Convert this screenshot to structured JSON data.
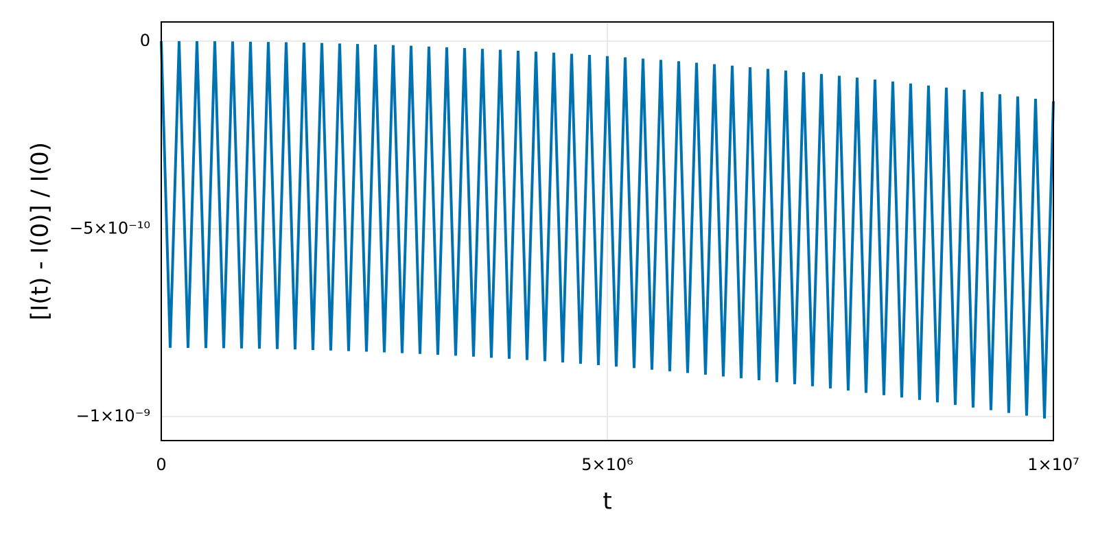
{
  "chart_data": {
    "type": "line",
    "xlabel": "t",
    "ylabel": "[I(t) - I(0)] / I(0)",
    "x": [
      0,
      100000,
      200000,
      300000,
      400000,
      500000,
      600000,
      700000,
      800000,
      900000,
      1000000,
      1100000,
      1200000,
      1300000,
      1400000,
      1500000,
      1600000,
      1700000,
      1800000,
      1900000,
      2000000,
      2100000,
      2200000,
      2300000,
      2400000,
      2500000,
      2600000,
      2700000,
      2800000,
      2900000,
      3000000,
      3100000,
      3200000,
      3300000,
      3400000,
      3500000,
      3600000,
      3700000,
      3800000,
      3900000,
      4000000,
      4100000,
      4200000,
      4300000,
      4400000,
      4500000,
      4600000,
      4700000,
      4800000,
      4900000,
      5000000,
      5100000,
      5200000,
      5300000,
      5400000,
      5500000,
      5600000,
      5700000,
      5800000,
      5900000,
      6000000,
      6100000,
      6200000,
      6300000,
      6400000,
      6500000,
      6600000,
      6700000,
      6800000,
      6900000,
      7000000,
      7100000,
      7200000,
      7300000,
      7400000,
      7500000,
      7600000,
      7700000,
      7800000,
      7900000,
      8000000,
      8100000,
      8200000,
      8300000,
      8400000,
      8500000,
      8600000,
      8700000,
      8800000,
      8900000,
      9000000,
      9100000,
      9200000,
      9300000,
      9400000,
      9500000,
      9600000,
      9700000,
      9800000,
      9900000,
      10000000
    ],
    "series": [
      {
        "color": "#0072b2",
        "values": [
          0,
          -8.17e-10,
          -1e-13,
          -8.172e-10,
          -2.6e-13,
          -8.175e-10,
          -5.8e-13,
          -8.179e-10,
          -1.02e-12,
          -8.186e-10,
          -1.6e-12,
          -8.193e-10,
          -2.3e-12,
          -8.202e-10,
          -3.14e-12,
          -8.213e-10,
          -4.1e-12,
          -8.226e-10,
          -5.18e-12,
          -8.239e-10,
          -6.4e-12,
          -8.255e-10,
          -7.74e-12,
          -8.272e-10,
          -9.22e-12,
          -8.29e-10,
          -1.08e-11,
          -8.31e-10,
          -1.25e-11,
          -8.331e-10,
          -1.44e-11,
          -8.355e-10,
          -1.64e-11,
          -8.379e-10,
          -1.85e-11,
          -8.405e-10,
          -2.07e-11,
          -8.433e-10,
          -2.31e-11,
          -8.462e-10,
          -2.56e-11,
          -8.493e-10,
          -2.82e-11,
          -8.525e-10,
          -3.1e-11,
          -8.559e-10,
          -3.39e-11,
          -8.594e-10,
          -3.69e-11,
          -8.631e-10,
          -4e-11,
          -8.669e-10,
          -4.33e-11,
          -8.709e-10,
          -4.67e-11,
          -8.751e-10,
          -5.02e-11,
          -8.794e-10,
          -5.38e-11,
          -8.838e-10,
          -5.76e-11,
          -8.884e-10,
          -6.15e-11,
          -8.932e-10,
          -6.55e-11,
          -8.981e-10,
          -6.97e-11,
          -9.032e-10,
          -7.4e-11,
          -9.084e-10,
          -7.84e-11,
          -9.138e-10,
          -8.29e-11,
          -9.193e-10,
          -8.76e-11,
          -9.25e-10,
          -9.24e-11,
          -9.308e-10,
          -9.73e-11,
          -9.368e-10,
          -1.024e-10,
          -9.43e-10,
          -1.076e-10,
          -9.493e-10,
          -1.129e-10,
          -9.557e-10,
          -1.183e-10,
          -9.623e-10,
          -1.239e-10,
          -9.691e-10,
          -1.296e-10,
          -9.76e-10,
          -1.354e-10,
          -9.831e-10,
          -1.414e-10,
          -9.903e-10,
          -1.475e-10,
          -9.976e-10,
          -1.537e-10,
          -1.0052e-09,
          -1.6e-10
        ]
      }
    ],
    "xlim": [
      0,
      10000000
    ],
    "xticks": [
      0,
      {
        "value": 5000000,
        "label": "5×10⁶"
      },
      {
        "value": 10000000,
        "label": "1×10⁷"
      }
    ],
    "ylim": [
      -1.064e-09,
      5.1e-11
    ],
    "yticks": [
      0,
      {
        "value": -5e-10,
        "label": "−5×10⁻¹⁰"
      },
      {
        "value": -1e-09,
        "label": "−1×10⁻⁹"
      }
    ],
    "grid": true
  }
}
